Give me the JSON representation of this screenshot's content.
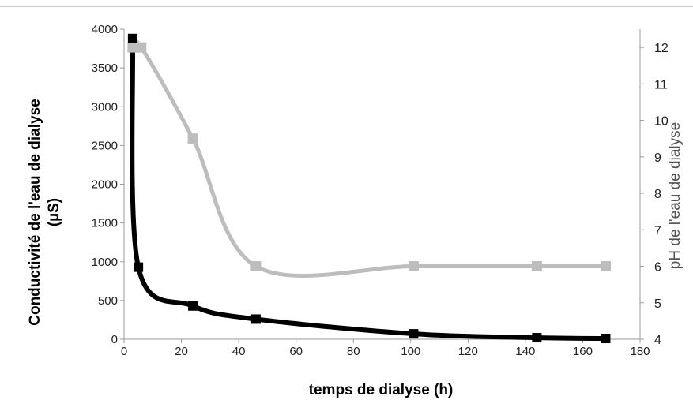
{
  "chart_data": {
    "type": "line",
    "title": "",
    "xlabel": "temps de dialyse (h)",
    "ylabel_left": [
      "Conductivité de l'eau de dialyse",
      "(µS)"
    ],
    "ylabel_right": "pH de l'eau de dialyse",
    "xlim": [
      0,
      180
    ],
    "xticks": [
      0,
      20,
      40,
      60,
      80,
      100,
      120,
      140,
      160,
      180
    ],
    "ylim_left": [
      0,
      4000
    ],
    "yticks_left": [
      0,
      500,
      1000,
      1500,
      2000,
      2500,
      3000,
      3500,
      4000
    ],
    "ylim_right": [
      4,
      12.5
    ],
    "yticks_right": [
      4,
      5,
      6,
      7,
      8,
      9,
      10,
      11,
      12
    ],
    "grid": false,
    "legend": "none",
    "series": [
      {
        "axis": "left",
        "color": "#000000",
        "marker": "square",
        "smooth": true,
        "x": [
          3,
          5,
          24,
          46,
          101,
          144,
          168
        ],
        "y": [
          3880,
          930,
          430,
          260,
          70,
          20,
          10
        ]
      },
      {
        "axis": "right",
        "color": "#bdbdbd",
        "marker": "square",
        "smooth": true,
        "x": [
          3,
          6,
          24,
          46,
          101,
          144,
          168
        ],
        "y": [
          12,
          12,
          9.5,
          6,
          6,
          6,
          6
        ]
      }
    ]
  }
}
